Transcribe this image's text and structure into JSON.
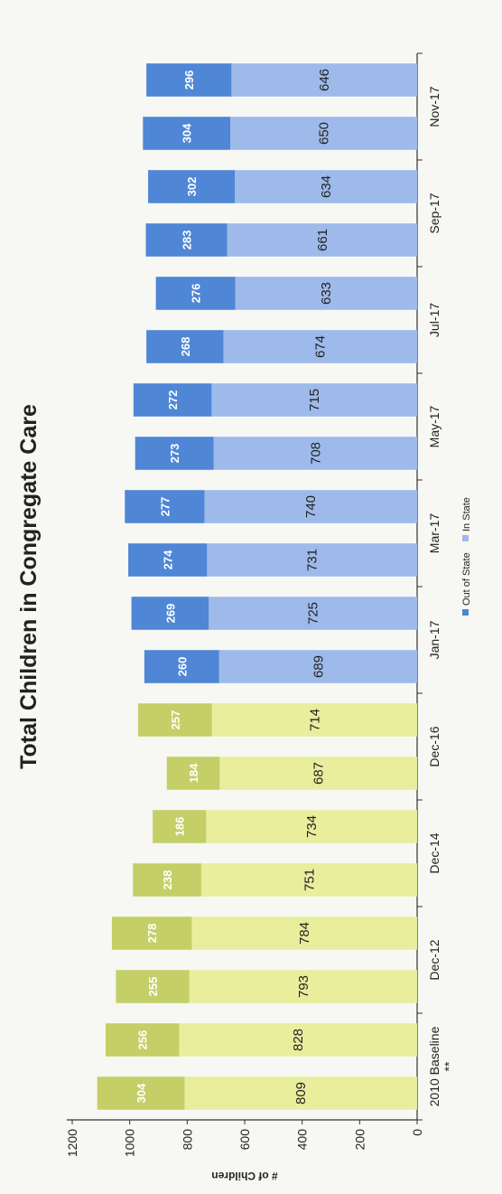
{
  "chart_data": {
    "type": "bar",
    "stacked": true,
    "title": "Total Children in Congregate Care",
    "xlabel": "",
    "ylabel": "# of Children",
    "ylim": [
      0,
      1200
    ],
    "yticks": [
      0,
      200,
      400,
      600,
      800,
      1000,
      1200
    ],
    "grid": false,
    "legend_position": "bottom",
    "categories": [
      "2010 Baseline **",
      "",
      "Dec-12",
      "",
      "Dec-14",
      "",
      "Dec-16",
      "",
      "Jan-17",
      "",
      "Mar-17",
      "",
      "May-17",
      "",
      "Jul-17",
      "",
      "Sep-17",
      "",
      "Nov-17",
      ""
    ],
    "series": [
      {
        "name": "In State",
        "values": [
          809,
          828,
          793,
          784,
          751,
          734,
          687,
          714,
          689,
          725,
          731,
          740,
          708,
          715,
          674,
          633,
          661,
          634,
          650,
          646
        ]
      },
      {
        "name": "Out of State",
        "values": [
          304,
          256,
          255,
          278,
          238,
          186,
          184,
          257,
          260,
          269,
          274,
          277,
          273,
          272,
          268,
          276,
          283,
          302,
          304,
          296
        ]
      }
    ],
    "colors": {
      "in_state_early": "#e8ee9c",
      "out_state_early": "#c4cf67",
      "in_state_late": "#9dbaea",
      "out_state_late": "#4f86d6"
    },
    "colored_early_count": 8
  }
}
